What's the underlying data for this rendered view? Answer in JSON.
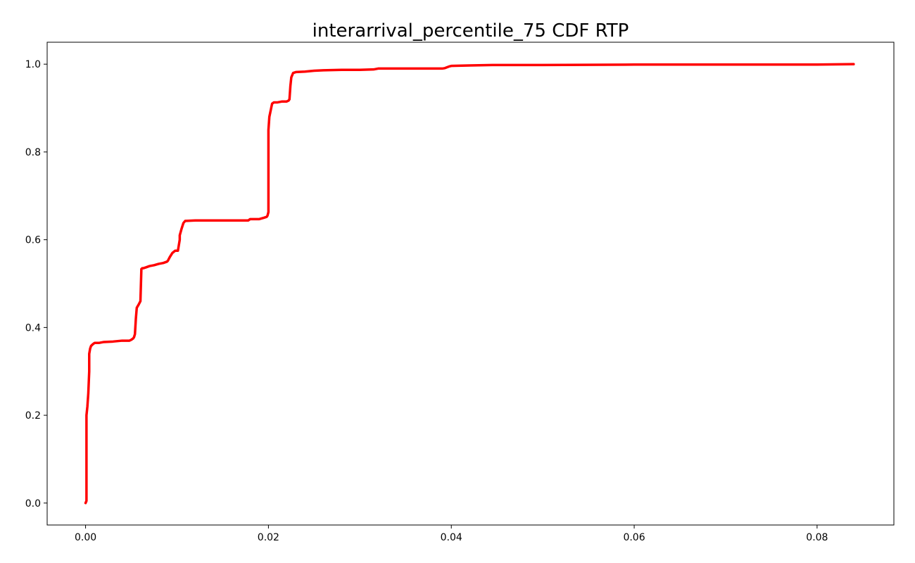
{
  "chart_data": {
    "type": "line",
    "title": "interarrival_percentile_75 CDF RTP",
    "xlabel": "",
    "ylabel": "",
    "xlim": [
      -0.0042,
      0.0884
    ],
    "ylim": [
      -0.05,
      1.05
    ],
    "x_ticks": [
      0.0,
      0.02,
      0.04,
      0.06,
      0.08
    ],
    "x_tick_labels": [
      "0.00",
      "0.02",
      "0.04",
      "0.06",
      "0.08"
    ],
    "y_ticks": [
      0.0,
      0.2,
      0.4,
      0.6,
      0.8,
      1.0
    ],
    "y_tick_labels": [
      "0.0",
      "0.2",
      "0.4",
      "0.6",
      "0.8",
      "1.0"
    ],
    "grid": false,
    "series": [
      {
        "color": "#ff0000",
        "x": [
          0.0,
          0.0001,
          0.0001,
          0.0002,
          0.0003,
          0.0004,
          0.0004,
          0.0005,
          0.0006,
          0.0008,
          0.001,
          0.0013,
          0.0015,
          0.002,
          0.003,
          0.004,
          0.0048,
          0.005,
          0.0052,
          0.0053,
          0.0054,
          0.0055,
          0.0056,
          0.0058,
          0.006,
          0.0061,
          0.0061,
          0.0062,
          0.0063,
          0.0066,
          0.007,
          0.0075,
          0.008,
          0.0085,
          0.0089,
          0.009,
          0.0092,
          0.0095,
          0.0098,
          0.0101,
          0.0103,
          0.0103,
          0.0105,
          0.0107,
          0.0109,
          0.011,
          0.012,
          0.014,
          0.016,
          0.0178,
          0.018,
          0.019,
          0.0195,
          0.0198,
          0.0199,
          0.02,
          0.02,
          0.0201,
          0.0203,
          0.0204,
          0.0206,
          0.021,
          0.0215,
          0.022,
          0.0222,
          0.0223,
          0.0224,
          0.0225,
          0.0227,
          0.023,
          0.024,
          0.025,
          0.026,
          0.028,
          0.03,
          0.0315,
          0.032,
          0.035,
          0.038,
          0.039,
          0.0393,
          0.0398,
          0.04,
          0.042,
          0.0445,
          0.05,
          0.06,
          0.07,
          0.08,
          0.084
        ],
        "y": [
          0.0,
          0.005,
          0.2,
          0.22,
          0.25,
          0.3,
          0.34,
          0.352,
          0.358,
          0.362,
          0.365,
          0.365,
          0.365,
          0.367,
          0.368,
          0.37,
          0.37,
          0.372,
          0.375,
          0.378,
          0.385,
          0.42,
          0.445,
          0.452,
          0.46,
          0.53,
          0.533,
          0.535,
          0.535,
          0.537,
          0.54,
          0.542,
          0.545,
          0.547,
          0.55,
          0.552,
          0.56,
          0.57,
          0.575,
          0.575,
          0.6,
          0.61,
          0.625,
          0.638,
          0.643,
          0.643,
          0.644,
          0.644,
          0.644,
          0.644,
          0.647,
          0.647,
          0.65,
          0.652,
          0.655,
          0.663,
          0.85,
          0.88,
          0.9,
          0.91,
          0.913,
          0.913,
          0.915,
          0.915,
          0.917,
          0.92,
          0.95,
          0.97,
          0.98,
          0.982,
          0.983,
          0.985,
          0.986,
          0.987,
          0.987,
          0.988,
          0.99,
          0.99,
          0.99,
          0.99,
          0.991,
          0.995,
          0.996,
          0.997,
          0.998,
          0.998,
          0.999,
          0.999,
          0.999,
          1.0
        ]
      }
    ]
  }
}
